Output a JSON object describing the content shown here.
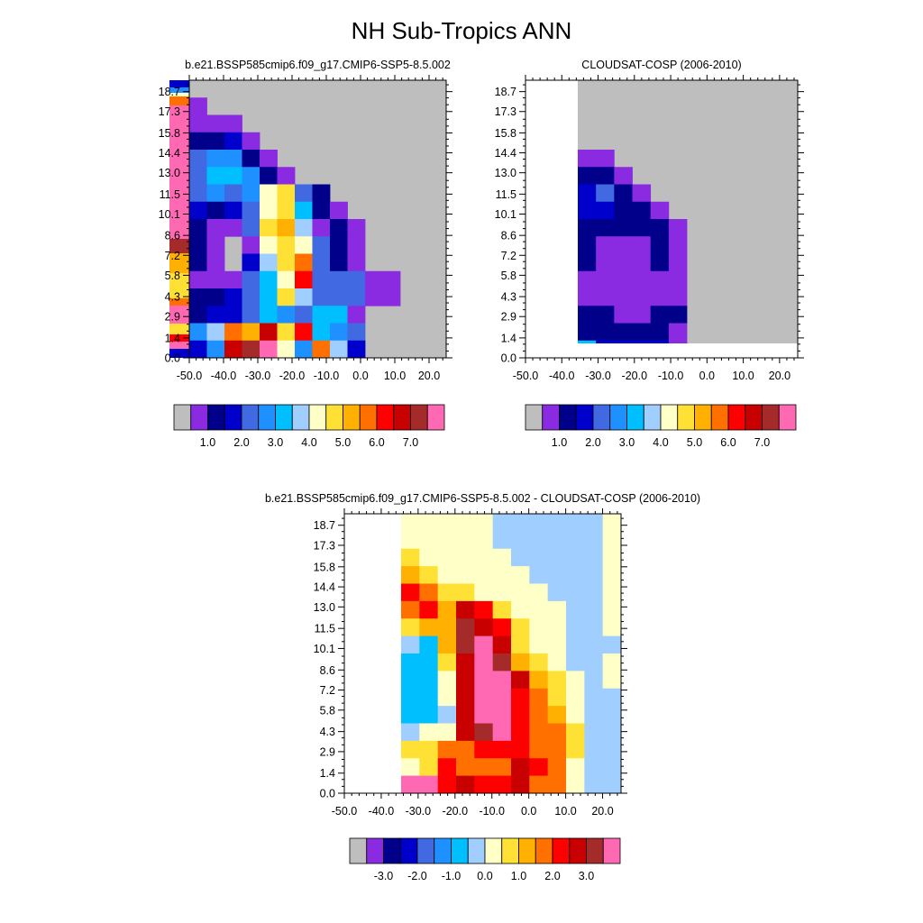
{
  "figure": {
    "title": "NH Sub-Tropics ANN"
  },
  "chart_data": [
    {
      "id": "model",
      "type": "heatmap",
      "title": "b.e21.BSSP585cmip6.f09_g17.CMIP6-SSP5-8.5.002",
      "xlabel": "",
      "ylabel": "",
      "xlim": [
        -50,
        25
      ],
      "ylim": [
        0,
        19.5
      ],
      "xticks": [
        "-50.0",
        "-40.0",
        "-30.0",
        "-20.0",
        "-10.0",
        "0.0",
        "10.0",
        "20.0"
      ],
      "yticks": [
        "0.0",
        "1.4",
        "2.9",
        "4.3",
        "5.8",
        "7.2",
        "8.6",
        "10.1",
        "11.5",
        "13.0",
        "14.4",
        "15.8",
        "17.3",
        "18.7"
      ],
      "colorbar": {
        "colors": [
          "#bebebe",
          "#8a2be2",
          "#00008b",
          "#0000cd",
          "#4169e1",
          "#1e90ff",
          "#00bfff",
          "#a0cfff",
          "#ffffc8",
          "#ffe135",
          "#ffb000",
          "#ff7000",
          "#ff0000",
          "#c80000",
          "#a52a2a",
          "#ff69b4"
        ],
        "labels": [
          "1.0",
          "2.0",
          "3.0",
          "4.0",
          "5.0",
          "6.0",
          "7.0"
        ]
      },
      "colored_region": "interior cells hold the value classes of the colorbar; grey is missing/zero",
      "cells": [
        {
          "x": -50,
          "y": 0.0,
          "c": 3
        },
        {
          "x": -50,
          "y": 1.0,
          "c": 11
        },
        {
          "x": -50,
          "y": 2.0,
          "c": 15
        },
        {
          "x": -50,
          "y": 3.0,
          "c": 13
        },
        {
          "x": -50,
          "y": 4.0,
          "c": 9
        },
        {
          "x": -50,
          "y": 5.5,
          "c": 10
        },
        {
          "x": -50,
          "y": 7.0,
          "c": 14
        },
        {
          "x": -50,
          "y": 8.0,
          "c": 15
        },
        {
          "x": -50,
          "y": 12.0,
          "c": 15
        },
        {
          "x": -50,
          "y": 16.0,
          "c": 15
        },
        {
          "x": -50,
          "y": 17.5,
          "c": 11
        },
        {
          "x": -50,
          "y": 18.2,
          "c": 8
        },
        {
          "x": -50,
          "y": 18.8,
          "c": 5
        },
        {
          "x": -50,
          "y": 19.2,
          "c": 2
        }
      ]
    },
    {
      "id": "obs",
      "type": "heatmap",
      "title": "CLOUDSAT-COSP (2006-2010)",
      "xlabel": "",
      "ylabel": "",
      "xlim": [
        -50,
        25
      ],
      "ylim": [
        0,
        19.5
      ],
      "xticks": [
        "-50.0",
        "-40.0",
        "-30.0",
        "-20.0",
        "-10.0",
        "0.0",
        "10.0",
        "20.0"
      ],
      "yticks": [
        "0.0",
        "1.4",
        "2.9",
        "4.3",
        "5.8",
        "7.2",
        "8.6",
        "10.1",
        "11.5",
        "13.0",
        "14.4",
        "15.8",
        "17.3",
        "18.7"
      ],
      "colorbar": {
        "colors": [
          "#bebebe",
          "#8a2be2",
          "#00008b",
          "#0000cd",
          "#4169e1",
          "#1e90ff",
          "#00bfff",
          "#a0cfff",
          "#ffffc8",
          "#ffe135",
          "#ffb000",
          "#ff7000",
          "#ff0000",
          "#c80000",
          "#a52a2a",
          "#ff69b4"
        ],
        "labels": [
          "1.0",
          "2.0",
          "3.0",
          "4.0",
          "5.0",
          "6.0",
          "7.0"
        ]
      }
    },
    {
      "id": "diff",
      "type": "heatmap",
      "title": "b.e21.BSSP585cmip6.f09_g17.CMIP6-SSP5-8.5.002 - CLOUDSAT-COSP (2006-2010)",
      "xlabel": "",
      "ylabel": "",
      "xlim": [
        -50,
        25
      ],
      "ylim": [
        0,
        19.5
      ],
      "xticks": [
        "-50.0",
        "-40.0",
        "-30.0",
        "-20.0",
        "-10.0",
        "0.0",
        "10.0",
        "20.0"
      ],
      "yticks": [
        "0.0",
        "1.4",
        "2.9",
        "4.3",
        "5.8",
        "7.2",
        "8.6",
        "10.1",
        "11.5",
        "13.0",
        "14.4",
        "15.8",
        "17.3",
        "18.7"
      ],
      "colorbar": {
        "colors": [
          "#bebebe",
          "#8a2be2",
          "#00008b",
          "#0000cd",
          "#4169e1",
          "#1e90ff",
          "#00bfff",
          "#a0cfff",
          "#ffffc8",
          "#ffe135",
          "#ffb000",
          "#ff7000",
          "#ff0000",
          "#c80000",
          "#a52a2a",
          "#ff69b4"
        ],
        "labels": [
          "-3.0",
          "-2.0",
          "-1.0",
          "0.0",
          "1.0",
          "2.0",
          "3.0"
        ]
      }
    }
  ]
}
